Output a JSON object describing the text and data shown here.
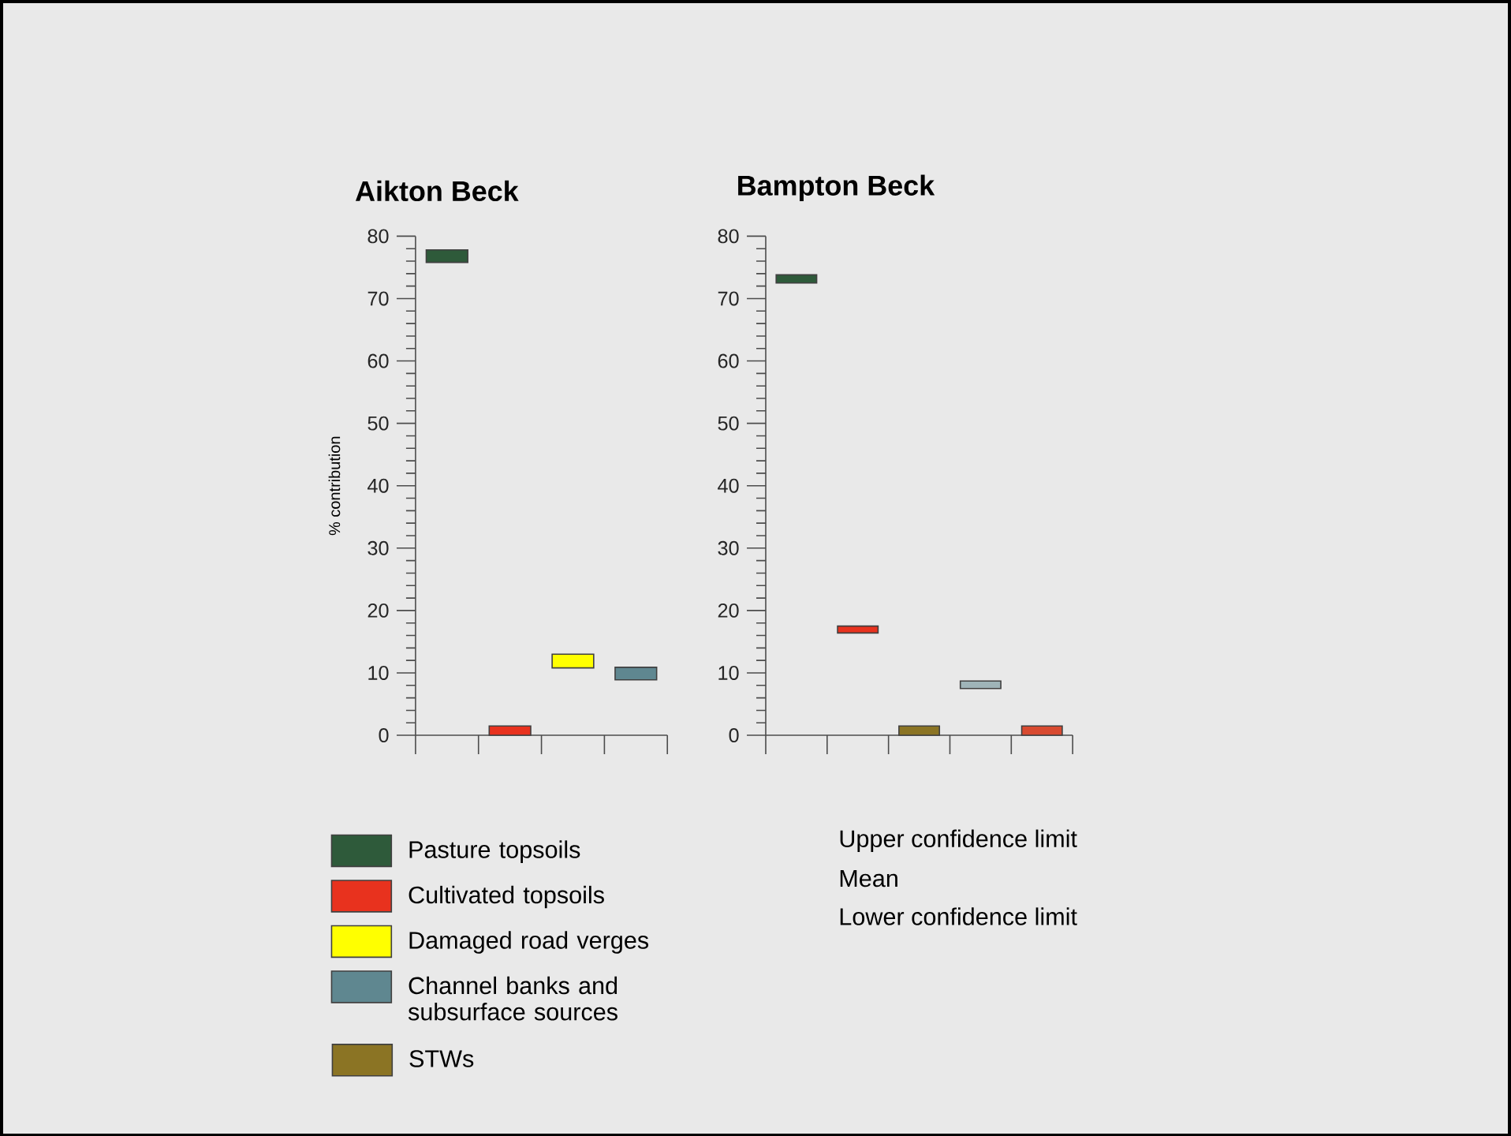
{
  "chart_data": [
    {
      "type": "bar",
      "title": "Aikton Beck",
      "ylabel": "% contribution",
      "categories": [
        null,
        null,
        null,
        null
      ],
      "ylim": [
        0,
        80
      ],
      "yticks": [
        0,
        10,
        20,
        30,
        40,
        50,
        60,
        70,
        80
      ],
      "legend": "bottom left",
      "series": [
        {
          "name": "Pasture topsoils",
          "color": "#2e5a3a",
          "values": [
            2.0,
            null,
            null,
            null
          ],
          "base": [
            75.8,
            null,
            null,
            null
          ]
        },
        {
          "name": "Cultivated topsoils",
          "color": "#e8321e",
          "values": [
            null,
            1.5,
            null,
            null
          ],
          "base": [
            null,
            0,
            null,
            null
          ]
        },
        {
          "name": "Damaged road verges",
          "color": "#ffff00",
          "values": [
            null,
            null,
            2.2,
            null
          ],
          "base": [
            null,
            null,
            10.8,
            null
          ]
        },
        {
          "name": "Channel banks and subsurface sources",
          "color": "#5f8790",
          "values": [
            null,
            null,
            null,
            2.0
          ],
          "base": [
            null,
            null,
            null,
            8.9
          ]
        }
      ]
    },
    {
      "type": "bar",
      "title": "Bampton Beck",
      "categories": [
        null,
        null,
        null,
        null,
        null
      ],
      "ylim": [
        0,
        80
      ],
      "yticks": [
        0,
        10,
        20,
        30,
        40,
        50,
        60,
        70,
        80
      ],
      "legend": "bottom left",
      "annotations": [
        "Upper confidence limit",
        "Mean",
        "Lower confidence limit"
      ],
      "series": [
        {
          "color": "#2e5a3a",
          "values": [
            1.3,
            null,
            null,
            null,
            null
          ],
          "base": [
            72.5,
            null,
            null,
            null,
            null
          ]
        },
        {
          "color": "#e8321e",
          "values": [
            null,
            1.1,
            null,
            null,
            null
          ],
          "base": [
            null,
            16.4,
            null,
            null,
            null
          ]
        },
        {
          "name": "STWs",
          "color": "#8b7424",
          "values": [
            null,
            null,
            1.5,
            null,
            null
          ],
          "base": [
            null,
            null,
            0,
            null,
            null
          ]
        },
        {
          "color": "#9fb4b8",
          "values": [
            null,
            null,
            null,
            1.2,
            null
          ],
          "base": [
            null,
            null,
            null,
            7.5,
            null
          ]
        },
        {
          "color": "#d84a30",
          "values": [
            null,
            null,
            null,
            null,
            1.5
          ],
          "base": [
            null,
            null,
            null,
            null,
            0
          ]
        }
      ]
    }
  ]
}
